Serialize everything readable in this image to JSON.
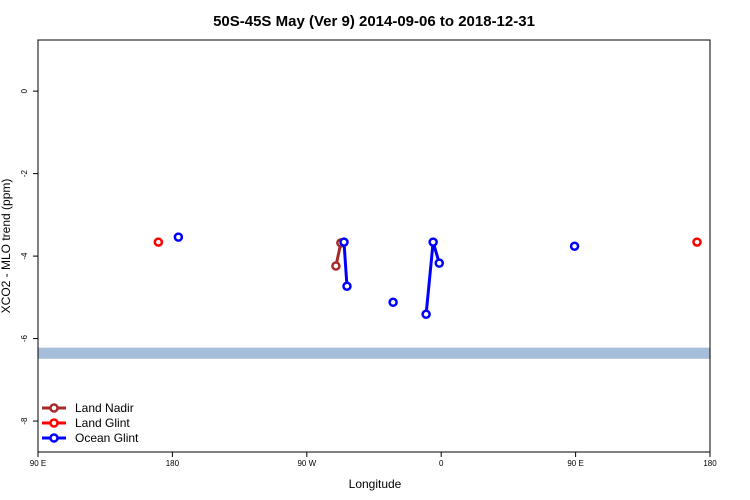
{
  "chart_data": {
    "type": "line",
    "title": "50S-45S May (Ver 9)   2014-09-06 to 2018-12-31",
    "x_label": "Longitude",
    "y_label": "XCO2 - MLO trend (ppm)",
    "xlim": [
      90,
      540
    ],
    "ylim": [
      -8.75,
      1.24
    ],
    "xticks": [
      {
        "value": 90,
        "label": "90 E"
      },
      {
        "value": 180,
        "label": "180"
      },
      {
        "value": 270,
        "label": "90 W"
      },
      {
        "value": 360,
        "label": "0"
      },
      {
        "value": 450,
        "label": "90 E"
      },
      {
        "value": 540,
        "label": "180"
      }
    ],
    "yticks": [
      0,
      -2,
      -4,
      -6,
      -8
    ],
    "band": [
      -6.22,
      -6.49
    ],
    "band_color": "#a7bedb",
    "legend": "bottom-left",
    "series": [
      {
        "name": "Land Nadir",
        "color": "#a52a2a",
        "x": [
          289.5,
          292.8
        ],
        "values": [
          -4.24,
          -3.68
        ]
      },
      {
        "name": "Land Glint",
        "color": "#ff0000",
        "x": [
          170.6,
          null,
          531.3
        ],
        "values": [
          -3.66,
          null,
          -3.66
        ]
      },
      {
        "name": "Ocean Glint",
        "color": "#0000ff",
        "x": [
          184.0,
          null,
          294.9,
          296.9,
          null,
          327.8,
          null,
          349.9,
          354.6,
          358.7,
          null,
          449.3
        ],
        "values": [
          -3.54,
          null,
          -3.66,
          -4.73,
          null,
          -5.12,
          null,
          -5.41,
          -3.66,
          -4.17,
          null,
          -3.76
        ]
      }
    ]
  }
}
